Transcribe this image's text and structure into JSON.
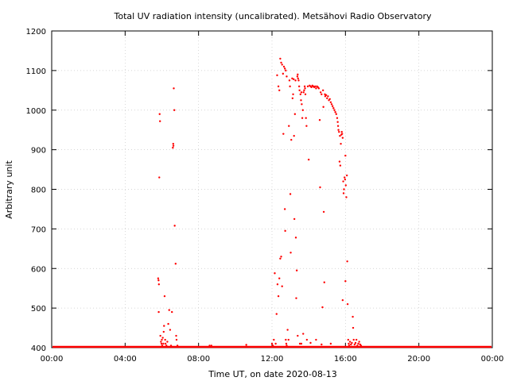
{
  "chart_data": {
    "type": "scatter",
    "title": "Total UV radiation intensity (uncalibrated). Metsähovi Radio Observatory",
    "xlabel": "Time UT, on date 2020-08-13",
    "ylabel": "Arbitrary unit",
    "x_unit": "hours UT",
    "xlim": [
      0,
      24
    ],
    "ylim": [
      400,
      1200
    ],
    "x_ticks": [
      0,
      4,
      8,
      12,
      16,
      20,
      24
    ],
    "x_tick_labels": [
      "00:00",
      "04:00",
      "08:00",
      "12:00",
      "16:00",
      "20:00",
      "00:00"
    ],
    "y_ticks": [
      400,
      500,
      600,
      700,
      800,
      900,
      1000,
      1100,
      1200
    ],
    "y_tick_labels": [
      "400",
      "500",
      "600",
      "700",
      "800",
      "900",
      "1000",
      "1100",
      "1200"
    ],
    "grid": true,
    "marker_color": "#ff0000",
    "baseline_value": 402,
    "series": [
      {
        "points": [
          [
            5.8,
            575
          ],
          [
            5.82,
            570
          ],
          [
            5.84,
            560
          ],
          [
            5.83,
            490
          ],
          [
            5.86,
            830
          ],
          [
            5.88,
            990
          ],
          [
            5.9,
            972
          ],
          [
            5.92,
            430
          ],
          [
            5.95,
            415
          ],
          [
            5.98,
            410
          ],
          [
            6.0,
            420
          ],
          [
            6.02,
            405
          ],
          [
            6.05,
            425
          ],
          [
            6.08,
            410
          ],
          [
            6.1,
            440
          ],
          [
            6.12,
            455
          ],
          [
            6.15,
            530
          ],
          [
            6.18,
            420
          ],
          [
            6.2,
            410
          ],
          [
            6.25,
            405
          ],
          [
            6.3,
            415
          ],
          [
            6.35,
            460
          ],
          [
            6.4,
            495
          ],
          [
            6.45,
            445
          ],
          [
            6.5,
            405
          ],
          [
            6.55,
            490
          ],
          [
            6.6,
            905
          ],
          [
            6.62,
            915
          ],
          [
            6.63,
            910
          ],
          [
            6.65,
            1055
          ],
          [
            6.68,
            1000
          ],
          [
            6.7,
            708
          ],
          [
            6.75,
            612
          ],
          [
            6.78,
            430
          ],
          [
            6.8,
            420
          ],
          [
            6.85,
            405
          ],
          [
            8.6,
            405
          ],
          [
            8.7,
            405
          ],
          [
            10.6,
            407
          ],
          [
            12.0,
            410
          ],
          [
            12.05,
            405
          ],
          [
            12.1,
            420
          ],
          [
            12.15,
            588
          ],
          [
            12.2,
            410
          ],
          [
            12.25,
            485
          ],
          [
            12.3,
            560
          ],
          [
            12.35,
            530
          ],
          [
            12.4,
            575
          ],
          [
            12.45,
            625
          ],
          [
            12.5,
            630
          ],
          [
            12.55,
            555
          ],
          [
            12.28,
            1088
          ],
          [
            12.35,
            1060
          ],
          [
            12.4,
            1050
          ],
          [
            12.45,
            1130
          ],
          [
            12.5,
            1120
          ],
          [
            12.55,
            1115
          ],
          [
            12.6,
            1092
          ],
          [
            12.65,
            1110
          ],
          [
            12.7,
            1105
          ],
          [
            12.75,
            1100
          ],
          [
            12.8,
            1085
          ],
          [
            12.62,
            940
          ],
          [
            12.7,
            750
          ],
          [
            12.72,
            695
          ],
          [
            12.75,
            420
          ],
          [
            12.78,
            410
          ],
          [
            12.8,
            405
          ],
          [
            12.85,
            445
          ],
          [
            12.9,
            420
          ],
          [
            12.92,
            960
          ],
          [
            12.95,
            1075
          ],
          [
            12.98,
            1060
          ],
          [
            13.0,
            788
          ],
          [
            13.02,
            640
          ],
          [
            13.05,
            925
          ],
          [
            13.1,
            1080
          ],
          [
            13.12,
            1030
          ],
          [
            13.15,
            1040
          ],
          [
            13.18,
            1078
          ],
          [
            13.2,
            935
          ],
          [
            13.22,
            725
          ],
          [
            13.25,
            990
          ],
          [
            13.28,
            1075
          ],
          [
            13.3,
            678
          ],
          [
            13.32,
            525
          ],
          [
            13.35,
            595
          ],
          [
            13.38,
            1085
          ],
          [
            13.4,
            1090
          ],
          [
            13.42,
            1080
          ],
          [
            13.45,
            1075
          ],
          [
            13.48,
            1060
          ],
          [
            13.5,
            1050
          ],
          [
            13.52,
            410
          ],
          [
            13.55,
            1040
          ],
          [
            13.58,
            1025
          ],
          [
            13.6,
            1045
          ],
          [
            13.62,
            1015
          ],
          [
            13.65,
            980
          ],
          [
            13.68,
            1000
          ],
          [
            13.7,
            435
          ],
          [
            13.72,
            1045
          ],
          [
            13.75,
            1050
          ],
          [
            13.78,
            1060
          ],
          [
            13.8,
            1055
          ],
          [
            13.82,
            1040
          ],
          [
            13.85,
            980
          ],
          [
            13.88,
            960
          ],
          [
            13.9,
            420
          ],
          [
            13.95,
            1060
          ],
          [
            14.0,
            875
          ],
          [
            14.05,
            1062
          ],
          [
            14.1,
            1060
          ],
          [
            14.15,
            1058
          ],
          [
            14.2,
            1062
          ],
          [
            14.25,
            1060
          ],
          [
            14.3,
            1058
          ],
          [
            14.35,
            1060
          ],
          [
            14.4,
            1055
          ],
          [
            14.45,
            1060
          ],
          [
            14.5,
            1058
          ],
          [
            14.55,
            1055
          ],
          [
            14.6,
            975
          ],
          [
            14.62,
            805
          ],
          [
            14.65,
            1045
          ],
          [
            14.7,
            1040
          ],
          [
            14.75,
            502
          ],
          [
            14.78,
            1050
          ],
          [
            14.8,
            1008
          ],
          [
            14.82,
            743
          ],
          [
            14.85,
            565
          ],
          [
            14.88,
            1040
          ],
          [
            14.9,
            1035
          ],
          [
            14.95,
            1038
          ],
          [
            15.0,
            1030
          ],
          [
            15.05,
            1035
          ],
          [
            15.1,
            1025
          ],
          [
            15.15,
            1028
          ],
          [
            15.2,
            1020
          ],
          [
            15.25,
            1015
          ],
          [
            15.3,
            1010
          ],
          [
            15.35,
            1005
          ],
          [
            15.4,
            1000
          ],
          [
            15.45,
            995
          ],
          [
            15.5,
            990
          ],
          [
            15.55,
            980
          ],
          [
            15.58,
            970
          ],
          [
            15.6,
            960
          ],
          [
            15.62,
            950
          ],
          [
            15.65,
            945
          ],
          [
            15.7,
            935
          ],
          [
            15.68,
            870
          ],
          [
            15.72,
            860
          ],
          [
            15.75,
            915
          ],
          [
            15.78,
            938
          ],
          [
            15.8,
            945
          ],
          [
            15.82,
            940
          ],
          [
            15.85,
            930
          ],
          [
            15.88,
            820
          ],
          [
            15.9,
            790
          ],
          [
            15.92,
            800
          ],
          [
            15.95,
            830
          ],
          [
            15.98,
            825
          ],
          [
            16.0,
            885
          ],
          [
            16.02,
            810
          ],
          [
            16.05,
            780
          ],
          [
            16.08,
            835
          ],
          [
            15.85,
            520
          ],
          [
            16.0,
            568
          ],
          [
            16.1,
            618
          ],
          [
            16.12,
            510
          ],
          [
            16.15,
            420
          ],
          [
            16.18,
            410
          ],
          [
            16.2,
            405
          ],
          [
            16.25,
            415
          ],
          [
            16.3,
            408
          ],
          [
            16.35,
            412
          ],
          [
            16.4,
            478
          ],
          [
            16.42,
            450
          ],
          [
            16.45,
            420
          ],
          [
            16.5,
            408
          ],
          [
            16.55,
            412
          ],
          [
            16.6,
            420
          ],
          [
            16.65,
            405
          ],
          [
            16.7,
            410
          ],
          [
            16.75,
            415
          ],
          [
            16.8,
            408
          ],
          [
            16.85,
            405
          ],
          [
            13.4,
            430
          ],
          [
            13.6,
            410
          ],
          [
            14.1,
            412
          ],
          [
            14.4,
            420
          ],
          [
            14.7,
            408
          ],
          [
            15.2,
            410
          ]
        ]
      }
    ]
  }
}
